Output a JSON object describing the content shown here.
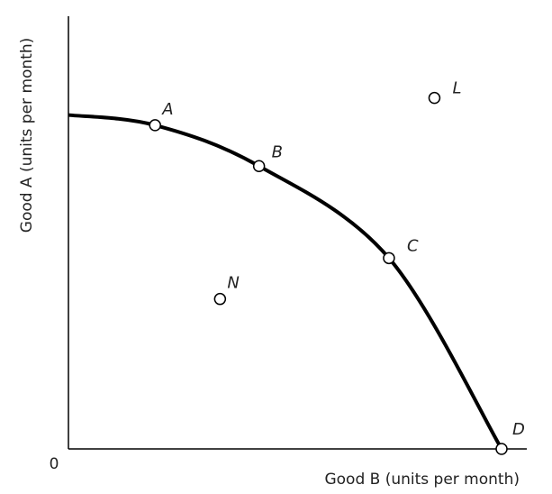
{
  "chart_data": {
    "type": "line",
    "title": "",
    "xlabel": "Good B (units per month)",
    "ylabel": "Good A (units per month)",
    "origin_label": "0",
    "xlim": [
      0,
      10
    ],
    "ylim": [
      0,
      10
    ],
    "ticks": "none",
    "grid": false,
    "legend": "none",
    "series": [
      {
        "style": "curve",
        "x": [
          0,
          2.0,
          4.4,
          7.4,
          10
        ],
        "y": [
          9.8,
          9.5,
          8.3,
          5.6,
          0
        ]
      }
    ],
    "points": [
      {
        "label": "A",
        "x": 2.0,
        "y": 9.5,
        "on_curve": true
      },
      {
        "label": "B",
        "x": 4.4,
        "y": 8.3,
        "on_curve": true
      },
      {
        "label": "C",
        "x": 7.4,
        "y": 5.6,
        "on_curve": true
      },
      {
        "label": "D",
        "x": 10,
        "y": 0,
        "on_curve": true
      },
      {
        "label": "L",
        "x": 8.45,
        "y": 10.3,
        "on_curve": false
      },
      {
        "label": "N",
        "x": 3.5,
        "y": 4.4,
        "on_curve": false
      }
    ],
    "colors": {
      "curve": "#000000",
      "axis": "#000000",
      "marker_fill": "#ffffff",
      "text": "#222222"
    }
  }
}
